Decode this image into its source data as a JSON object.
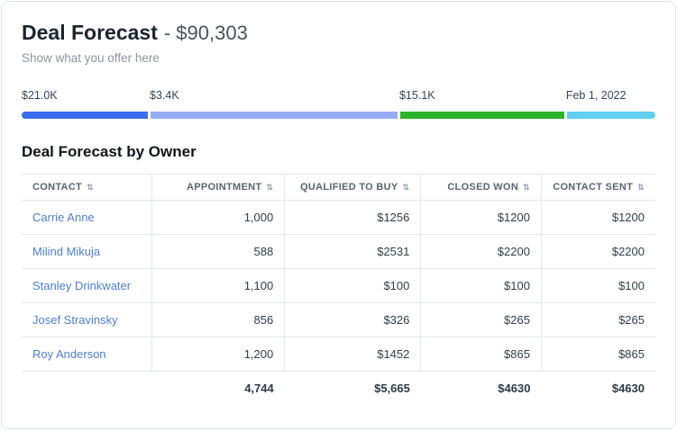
{
  "header": {
    "title": "Deal Forecast",
    "amount": "- $90,303",
    "subtitle": "Show what you offer here"
  },
  "progress": {
    "segments": [
      {
        "label": "$21.0K",
        "color": "#3b6cf0",
        "width_pct": 20.2
      },
      {
        "label": "$3.4K",
        "color": "#94acf4",
        "width_pct": 39.4
      },
      {
        "label": "$15.1K",
        "color": "#2cb32c",
        "width_pct": 26.3
      },
      {
        "label": "Feb 1, 2022",
        "color": "#5fd0f2",
        "width_pct": 14.1
      }
    ]
  },
  "table": {
    "title": "Deal Forecast by Owner",
    "columns": [
      "CONTACT",
      "APPOINTMENT",
      "QUALIFIED TO BUY",
      "CLOSED WON",
      "CONTACT SENT"
    ],
    "sort_icon": "⇅",
    "rows": [
      [
        "Carrie Anne",
        "1,000",
        "$1256",
        "$1200",
        "$1200"
      ],
      [
        "Milind Mikuja",
        "588",
        "$2531",
        "$2200",
        "$2200"
      ],
      [
        "Stanley Drinkwater",
        "1,100",
        "$100",
        "$100",
        "$100"
      ],
      [
        "Josef Stravinsky",
        "856",
        "$326",
        "$265",
        "$265"
      ],
      [
        "Roy Anderson",
        "1,200",
        "$1452",
        "$865",
        "$865"
      ]
    ],
    "totals": [
      "",
      "4,744",
      "$5,665",
      "$4630",
      "$4630"
    ]
  }
}
